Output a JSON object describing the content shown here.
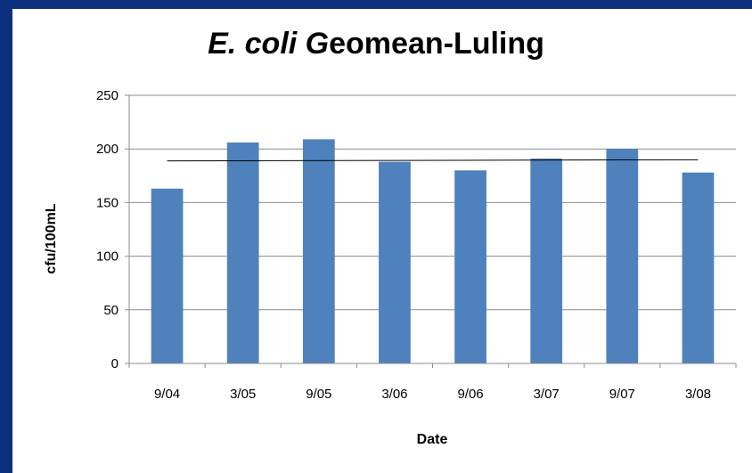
{
  "chart_data": {
    "type": "bar",
    "title_italic": "E. coli G",
    "title_rest": "eomean-Luling",
    "xlabel": "Date",
    "ylabel": "cfu/100mL",
    "categories": [
      "9/04",
      "3/05",
      "9/05",
      "3/06",
      "9/06",
      "3/07",
      "9/07",
      "3/08"
    ],
    "values": [
      163,
      206,
      209,
      188,
      180,
      191,
      200,
      178
    ],
    "ylim": [
      0,
      250
    ],
    "yticks": [
      0,
      50,
      100,
      150,
      200,
      250
    ],
    "grid": true,
    "legend": "none",
    "trendline": {
      "type": "linear"
    },
    "bar_color": "#4f81bd",
    "background_color": "#0b2f7e"
  }
}
